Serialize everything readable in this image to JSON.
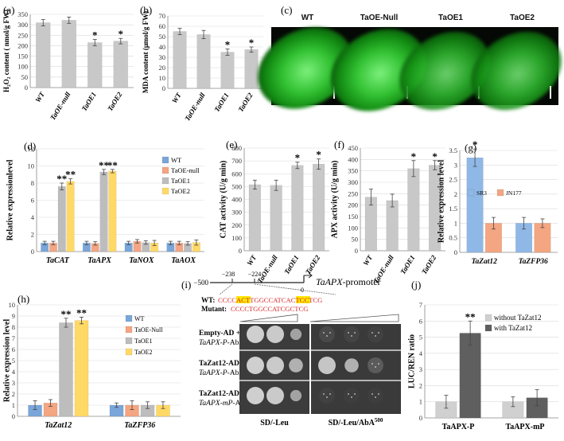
{
  "panel_labels": {
    "a": "(a)",
    "b": "(b)",
    "c": "(c)",
    "d": "(d)",
    "e": "(e)",
    "f": "(f)",
    "g": "(g)",
    "h": "(h)",
    "i": "(i)",
    "j": "(j)"
  },
  "significance": {
    "single": "*",
    "double": "**"
  },
  "colors": {
    "grey_bar": "#c8c8c8",
    "WT": "#7aa6d9",
    "TaOE-null": "#f4a582",
    "TaOE1": "#bdbdbd",
    "TaOE2": "#ffd966",
    "SR3": "#8fb8e6",
    "JN177": "#f4a582",
    "without_TaZat12": "#d0d0d0",
    "with_TaZat12": "#5f5f5f",
    "highlight": "#ffe600",
    "red_sequence": "#d62728"
  },
  "chart_data": [
    {
      "id": "a",
      "type": "bar",
      "categories": [
        "WT",
        "TaOE-null",
        "TaOE1",
        "TaOE2"
      ],
      "values": [
        310,
        322,
        215,
        222
      ],
      "errors": [
        15,
        15,
        15,
        13
      ],
      "significance": [
        "",
        "",
        "*",
        "*"
      ],
      "ylabel": "H₂O₂ content ( nmol/g FW)",
      "yticks": [
        0,
        50,
        100,
        150,
        200,
        250,
        300,
        350
      ],
      "ylim": [
        0,
        350
      ]
    },
    {
      "id": "b",
      "type": "bar",
      "categories": [
        "WT",
        "TaOE-null",
        "TaOE1",
        "TaOE2"
      ],
      "values": [
        55,
        52,
        35,
        37.5
      ],
      "errors": [
        3,
        4,
        3,
        2.5
      ],
      "significance": [
        "",
        "",
        "*",
        "*"
      ],
      "ylabel": "MDA content (μmol/g FW)",
      "yticks": [
        0,
        10,
        20,
        30,
        40,
        50,
        60,
        70
      ],
      "ylim": [
        0,
        70
      ]
    },
    {
      "id": "d",
      "type": "bar",
      "categories": [
        "TaCAT",
        "TaAPX",
        "TaNOX",
        "TaAOX"
      ],
      "series": [
        {
          "name": "WT",
          "values": [
            1.0,
            1.0,
            1.0,
            1.0
          ],
          "errors": [
            0.2,
            0.2,
            0.2,
            0.2
          ],
          "significance": [
            "",
            "",
            "",
            ""
          ]
        },
        {
          "name": "TaOE-null",
          "values": [
            1.0,
            0.95,
            1.2,
            1.0
          ],
          "errors": [
            0.2,
            0.2,
            0.2,
            0.2
          ],
          "significance": [
            "",
            "",
            "",
            ""
          ]
        },
        {
          "name": "TaOE1",
          "values": [
            7.6,
            9.3,
            1.05,
            0.95
          ],
          "errors": [
            0.4,
            0.3,
            0.2,
            0.2
          ],
          "significance": [
            "**",
            "**",
            "",
            ""
          ]
        },
        {
          "name": "TaOE2",
          "values": [
            8.2,
            9.4,
            1.0,
            1.05
          ],
          "errors": [
            0.3,
            0.2,
            0.3,
            0.3
          ],
          "significance": [
            "**",
            "**",
            "",
            ""
          ]
        }
      ],
      "ylabel": "Relative expressionlevel",
      "yticks": [
        0,
        2,
        4,
        6,
        8,
        10,
        12
      ],
      "ylim": [
        0,
        12
      ],
      "legend": "top-right"
    },
    {
      "id": "e",
      "type": "bar",
      "categories": [
        "WT",
        "TaOE-null",
        "TaOE1",
        "TaOE2"
      ],
      "values": [
        515,
        510,
        665,
        675
      ],
      "errors": [
        35,
        40,
        25,
        40
      ],
      "significance": [
        "",
        "",
        "*",
        "*"
      ],
      "ylabel": "CAT activity (U/g min)",
      "yticks": [
        0,
        100,
        200,
        300,
        400,
        500,
        600,
        700,
        800
      ],
      "ylim": [
        0,
        800
      ]
    },
    {
      "id": "f",
      "type": "bar",
      "categories": [
        "WT",
        "TaOE-null",
        "TaOE1",
        "TaOE2"
      ],
      "values": [
        235,
        220,
        360,
        375
      ],
      "errors": [
        35,
        28,
        35,
        20
      ],
      "significance": [
        "",
        "",
        "*",
        "*"
      ],
      "ylabel": "APX activity (U/g min)",
      "yticks": [
        0,
        50,
        100,
        150,
        200,
        250,
        300,
        350,
        400,
        450
      ],
      "ylim": [
        0,
        450
      ]
    },
    {
      "id": "g",
      "type": "bar",
      "categories": [
        "TaZat12",
        "TaZFP36"
      ],
      "series": [
        {
          "name": "SR3",
          "values": [
            3.25,
            1.0
          ],
          "errors": [
            0.3,
            0.2
          ],
          "significance": [
            "*",
            ""
          ]
        },
        {
          "name": "JN177",
          "values": [
            1.0,
            1.0
          ],
          "errors": [
            0.2,
            0.15
          ],
          "significance": [
            "",
            ""
          ]
        }
      ],
      "ylabel": "Relative expression level",
      "yticks": [
        0,
        0.5,
        1,
        1.5,
        2,
        2.5,
        3,
        3.5
      ],
      "ylim": [
        0,
        3.5
      ],
      "legend": "top-right"
    },
    {
      "id": "h",
      "type": "bar",
      "categories": [
        "TaZat12",
        "TaZFP36"
      ],
      "series": [
        {
          "name": "WT",
          "values": [
            1.0,
            1.0
          ],
          "errors": [
            0.4,
            0.2
          ],
          "significance": [
            "",
            ""
          ]
        },
        {
          "name": "TaOE-Null",
          "values": [
            1.2,
            1.0
          ],
          "errors": [
            0.3,
            0.4
          ],
          "significance": [
            "",
            ""
          ]
        },
        {
          "name": "TaOE1",
          "values": [
            8.4,
            1.0
          ],
          "errors": [
            0.4,
            0.3
          ],
          "significance": [
            "**",
            ""
          ]
        },
        {
          "name": "TaOE2",
          "values": [
            8.6,
            1.0
          ],
          "errors": [
            0.3,
            0.3
          ],
          "significance": [
            "**",
            ""
          ]
        }
      ],
      "ylabel": "Relative expression level",
      "yticks": [
        0,
        1,
        2,
        3,
        4,
        5,
        6,
        7,
        8,
        9,
        10
      ],
      "ylim": [
        0,
        10
      ],
      "legend": "top-right"
    },
    {
      "id": "j",
      "type": "bar",
      "categories": [
        "TaAPX-P",
        "TaAPX-mP"
      ],
      "series": [
        {
          "name": "without TaZat12",
          "values": [
            1.0,
            1.0
          ],
          "errors": [
            0.4,
            0.3
          ],
          "significance": [
            "",
            ""
          ]
        },
        {
          "name": "with TaZat12",
          "values": [
            5.25,
            1.25
          ],
          "errors": [
            0.75,
            0.5
          ],
          "significance": [
            "**",
            ""
          ]
        }
      ],
      "ylabel": "LUC/REN ratio",
      "yticks": [
        0,
        1,
        2,
        3,
        4,
        5,
        6,
        7
      ],
      "ylim": [
        0,
        7
      ],
      "legend": "top-right"
    }
  ],
  "panel_c": {
    "labels": [
      "WT",
      "TaOE-Null",
      "TaOE1",
      "TaOE2"
    ]
  },
  "panel_i": {
    "promoter_positions": [
      "−500",
      "−238",
      "−224",
      "0"
    ],
    "promoter_title_italic": "TaAPX",
    "promoter_title_rest": "-promoter",
    "wt_label": "WT:",
    "mutant_label": "Mutant:",
    "wt_sequence": [
      "CCCC",
      "ACT",
      "TGGCCATC",
      "ACT",
      "CCTCG"
    ],
    "mutant_sequence": "CCCCTGGCCATCGCTCG",
    "rows": [
      {
        "line1": "Empty-AD +",
        "line2_italic": "TaAPX-P",
        "line2_rest": "-AbAi"
      },
      {
        "line1": "TaZat12-AD +",
        "line2_italic": "TaAPX-P",
        "line2_rest": "-AbAi"
      },
      {
        "line1": "TaZat12-AD +",
        "line2_italic": "TaAPX-mP",
        "line2_rest": "-AbAi"
      }
    ],
    "media": [
      "SD/-Leu",
      "SD/-Leu/AbA"
    ],
    "media_superscript": "500"
  }
}
